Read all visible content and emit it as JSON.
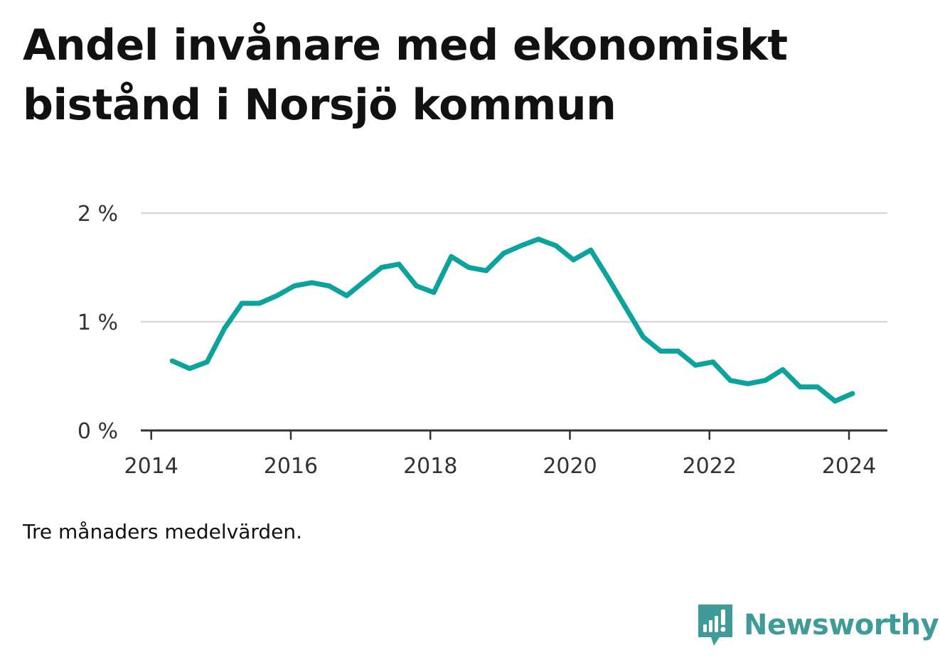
{
  "title": "Andel invånare med ekonomiskt bistånd i Norsjö kommun",
  "note": "Tre månaders medelvärden.",
  "brand": {
    "name": "Newsworthy",
    "icon": "newsworthy-logo-icon",
    "color": "#3e9b97"
  },
  "colors": {
    "line": "#0ba39c",
    "grid": "#d9d9d9",
    "axis": "#333333"
  },
  "chart_data": {
    "type": "line",
    "title": "Andel invånare med ekonomiskt bistånd i Norsjö kommun",
    "xlabel": "",
    "ylabel": "",
    "xlim": [
      2013.85,
      2024.55
    ],
    "ylim": [
      0,
      2
    ],
    "x_ticks": [
      2014,
      2016,
      2018,
      2020,
      2022,
      2024
    ],
    "x_tick_labels": [
      "2014",
      "2016",
      "2018",
      "2020",
      "2022",
      "2024"
    ],
    "y_ticks": [
      0,
      1,
      2
    ],
    "y_tick_labels": [
      "0 %",
      "1 %",
      "2 %"
    ],
    "grid": true,
    "series": [
      {
        "x": [
          2014.3,
          2014.55,
          2014.8,
          2015.05,
          2015.3,
          2015.55,
          2015.8,
          2016.05,
          2016.3,
          2016.55,
          2016.8,
          2017.05,
          2017.3,
          2017.55,
          2017.8,
          2018.05,
          2018.3,
          2018.55,
          2018.8,
          2019.05,
          2019.3,
          2019.55,
          2019.8,
          2020.05,
          2020.3,
          2020.55,
          2020.8,
          2021.05,
          2021.3,
          2021.55,
          2021.8,
          2022.05,
          2022.3,
          2022.55,
          2022.8,
          2023.05,
          2023.3,
          2023.55,
          2023.8,
          2024.05
        ],
        "values": [
          0.64,
          0.57,
          0.63,
          0.94,
          1.17,
          1.17,
          1.24,
          1.33,
          1.36,
          1.33,
          1.24,
          1.37,
          1.5,
          1.53,
          1.33,
          1.27,
          1.6,
          1.5,
          1.47,
          1.63,
          1.7,
          1.76,
          1.7,
          1.57,
          1.66,
          1.4,
          1.13,
          0.86,
          0.73,
          0.73,
          0.6,
          0.63,
          0.46,
          0.43,
          0.46,
          0.56,
          0.4,
          0.4,
          0.27,
          0.34
        ]
      }
    ]
  }
}
